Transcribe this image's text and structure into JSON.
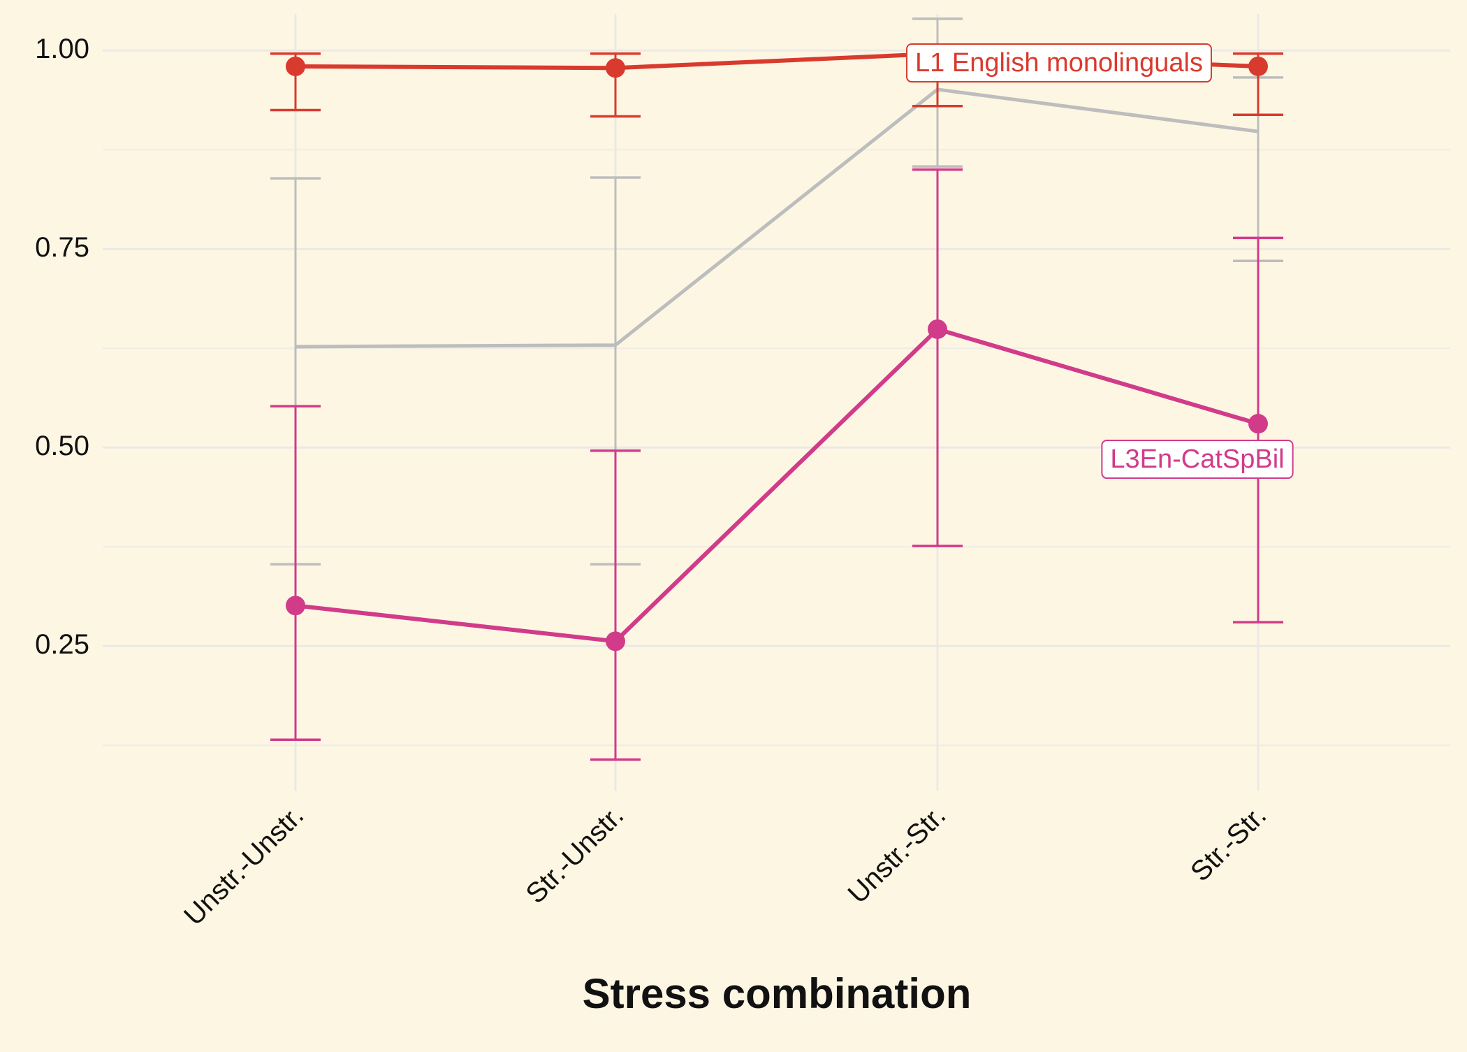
{
  "chart_data": {
    "type": "line",
    "x_label": "Stress combination",
    "categories": [
      "Unstr.-Unstr.",
      "Str.-Unstr.",
      "Unstr.-Str.",
      "Str.-Str."
    ],
    "ylim": [
      0.068,
      1.046
    ],
    "yticks": [
      0.25,
      {
        "value": 0.5,
        "label": "0.50"
      },
      0.75,
      {
        "value": 1,
        "label": "1.00"
      }
    ],
    "minor_yticks": [
      0.125,
      0.375,
      0.625,
      0.875
    ],
    "grid": true,
    "series": [
      {
        "name": "L1 English monolinguals",
        "color": "#d93a2e",
        "markers": true,
        "values": [
          0.98,
          0.978,
          0.996,
          0.98
        ],
        "lower": [
          0.925,
          0.917,
          0.93,
          0.919
        ],
        "upper": [
          0.996,
          0.996,
          0.998,
          0.996
        ]
      },
      {
        "color": "#bdbdbd",
        "markers": false,
        "values": [
          0.627,
          0.629,
          0.951,
          0.898
        ],
        "lower": [
          0.353,
          0.353,
          0.854,
          0.735
        ],
        "upper": [
          0.839,
          0.84,
          1.04,
          0.966
        ]
      },
      {
        "name": "L3En-CatSpBil",
        "color": "#d13b8a",
        "markers": true,
        "values": [
          0.301,
          0.256,
          0.649,
          0.53
        ],
        "lower": [
          0.132,
          0.107,
          0.376,
          0.28
        ],
        "upper": [
          0.552,
          0.496,
          0.85,
          0.764
        ]
      }
    ]
  }
}
